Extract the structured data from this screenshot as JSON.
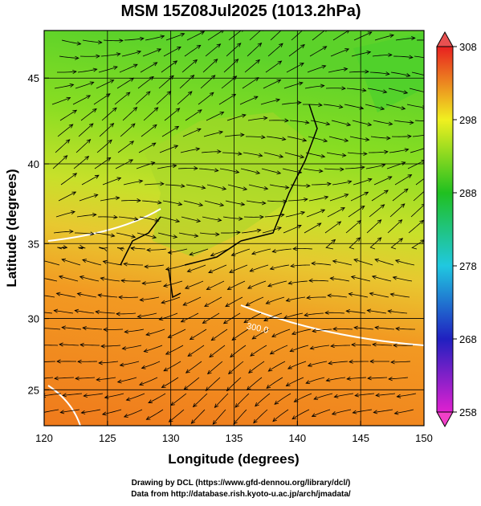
{
  "title": "MSM 15Z08Jul2025 (1013.2hPa)",
  "map": {
    "xlabel": "Longitude (degrees)",
    "ylabel": "Latitude  (degrees)",
    "xlim": [
      120,
      150
    ],
    "ylim": [
      22.4,
      47.6
    ],
    "xticks": [
      120,
      125,
      130,
      135,
      140,
      145,
      150
    ],
    "yticks": [
      25,
      30,
      35,
      40,
      45
    ],
    "projection": "mercator",
    "grid": true,
    "contour_label": "300.0"
  },
  "colorbar": {
    "lim": [
      258,
      308
    ],
    "ticks": [
      258,
      268,
      278,
      288,
      298,
      308
    ]
  },
  "footer": [
    "Drawing by DCL (https://www.gfd-dennou.org/library/dcl/)",
    "Data from http://database.rish.kyoto-u.ac.jp/arch/jmadata/"
  ]
}
